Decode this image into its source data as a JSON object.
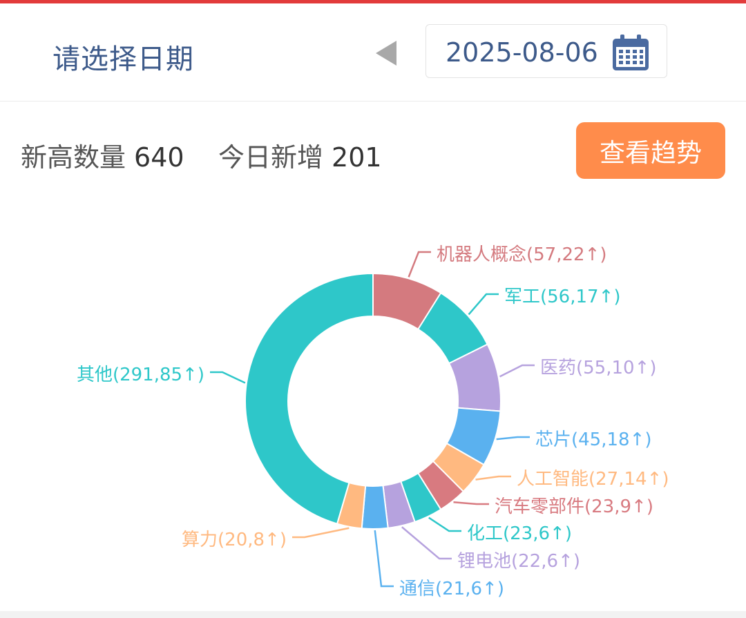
{
  "header": {
    "title": "请选择日期",
    "date": "2025-08-06"
  },
  "stats": {
    "new_high_label": "新高数量",
    "new_high_value": "640",
    "today_added_label": "今日新增",
    "today_added_value": "201"
  },
  "trend_button": "查看趋势",
  "colors": {
    "accent_red": "#e23b3b",
    "title_blue": "#3d5a8a",
    "button_orange": "#ff8c4b"
  },
  "chart_data": {
    "type": "pie",
    "title": "",
    "donut": true,
    "slices": [
      {
        "name": "机器人概念",
        "value": 57,
        "increase": 22,
        "label": "机器人概念(57,22↑)",
        "color": "#d47a7f"
      },
      {
        "name": "军工",
        "value": 56,
        "increase": 17,
        "label": "军工(56,17↑)",
        "color": "#2ec7c9"
      },
      {
        "name": "医药",
        "value": 55,
        "increase": 10,
        "label": "医药(55,10↑)",
        "color": "#b6a2de"
      },
      {
        "name": "芯片",
        "value": 45,
        "increase": 18,
        "label": "芯片(45,18↑)",
        "color": "#5ab1ef"
      },
      {
        "name": "人工智能",
        "value": 27,
        "increase": 14,
        "label": "人工智能(27,14↑)",
        "color": "#ffb980"
      },
      {
        "name": "汽车零部件",
        "value": 23,
        "increase": 9,
        "label": "汽车零部件(23,9↑)",
        "color": "#d87a80"
      },
      {
        "name": "化工",
        "value": 23,
        "increase": 6,
        "label": "化工(23,6↑)",
        "color": "#2ec7c9"
      },
      {
        "name": "锂电池",
        "value": 22,
        "increase": 6,
        "label": "锂电池(22,6↑)",
        "color": "#b6a2de"
      },
      {
        "name": "通信",
        "value": 21,
        "increase": 6,
        "label": "通信(21,6↑)",
        "color": "#5ab1ef"
      },
      {
        "name": "算力",
        "value": 20,
        "increase": 8,
        "label": "算力(20,8↑)",
        "color": "#ffb980"
      },
      {
        "name": "其他",
        "value": 291,
        "increase": 85,
        "label": "其他(291,85↑)",
        "color": "#2ec7c9"
      }
    ]
  }
}
